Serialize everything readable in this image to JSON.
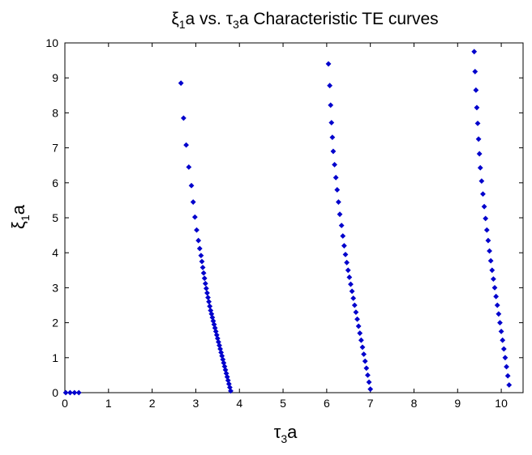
{
  "chart_data": {
    "type": "scatter",
    "title": {
      "greek": "ξ",
      "sub1": "1",
      "mid": "a vs. ",
      "greek2": "τ",
      "sub2": "3",
      "rest": "a Characteristic TE curves"
    },
    "xlabel": {
      "greek": "τ",
      "sub": "3",
      "rest": "a"
    },
    "ylabel": {
      "greek": "ξ",
      "sub": "1",
      "rest": "a"
    },
    "xlim": [
      0,
      10.5
    ],
    "ylim": [
      0,
      10
    ],
    "xticks": [
      0,
      1,
      2,
      3,
      4,
      5,
      6,
      7,
      8,
      9,
      10
    ],
    "yticks": [
      0,
      1,
      2,
      3,
      4,
      5,
      6,
      7,
      8,
      9,
      10
    ],
    "grid": false,
    "marker_color": "#0000cc",
    "series": [
      {
        "points": [
          [
            0.02,
            0.0
          ],
          [
            0.12,
            0.0
          ],
          [
            0.22,
            0.0
          ],
          [
            0.32,
            0.0
          ]
        ]
      },
      {
        "points": [
          [
            3.8,
            0.05
          ],
          [
            3.78,
            0.15
          ],
          [
            3.76,
            0.25
          ],
          [
            3.74,
            0.35
          ],
          [
            3.72,
            0.45
          ],
          [
            3.7,
            0.55
          ],
          [
            3.68,
            0.65
          ],
          [
            3.66,
            0.75
          ],
          [
            3.64,
            0.85
          ],
          [
            3.62,
            0.95
          ],
          [
            3.6,
            1.05
          ],
          [
            3.58,
            1.15
          ],
          [
            3.56,
            1.25
          ],
          [
            3.54,
            1.35
          ],
          [
            3.52,
            1.45
          ],
          [
            3.5,
            1.55
          ],
          [
            3.48,
            1.65
          ],
          [
            3.46,
            1.75
          ],
          [
            3.44,
            1.85
          ],
          [
            3.42,
            1.95
          ],
          [
            3.4,
            2.05
          ],
          [
            3.38,
            2.15
          ],
          [
            3.36,
            2.25
          ],
          [
            3.34,
            2.35
          ],
          [
            3.32,
            2.47
          ],
          [
            3.3,
            2.6
          ],
          [
            3.28,
            2.72
          ],
          [
            3.26,
            2.85
          ],
          [
            3.24,
            2.98
          ],
          [
            3.22,
            3.12
          ],
          [
            3.2,
            3.27
          ],
          [
            3.18,
            3.42
          ],
          [
            3.16,
            3.58
          ],
          [
            3.14,
            3.75
          ],
          [
            3.12,
            3.92
          ],
          [
            3.09,
            4.12
          ],
          [
            3.06,
            4.35
          ],
          [
            3.02,
            4.65
          ],
          [
            2.98,
            5.02
          ],
          [
            2.94,
            5.45
          ],
          [
            2.9,
            5.92
          ],
          [
            2.84,
            6.45
          ],
          [
            2.78,
            7.08
          ],
          [
            2.72,
            7.85
          ],
          [
            2.66,
            8.85
          ]
        ]
      },
      {
        "points": [
          [
            7.0,
            0.1
          ],
          [
            6.97,
            0.3
          ],
          [
            6.94,
            0.5
          ],
          [
            6.91,
            0.7
          ],
          [
            6.88,
            0.9
          ],
          [
            6.85,
            1.1
          ],
          [
            6.82,
            1.3
          ],
          [
            6.79,
            1.5
          ],
          [
            6.76,
            1.7
          ],
          [
            6.73,
            1.9
          ],
          [
            6.7,
            2.1
          ],
          [
            6.67,
            2.3
          ],
          [
            6.64,
            2.5
          ],
          [
            6.61,
            2.7
          ],
          [
            6.58,
            2.9
          ],
          [
            6.55,
            3.1
          ],
          [
            6.52,
            3.3
          ],
          [
            6.49,
            3.5
          ],
          [
            6.46,
            3.72
          ],
          [
            6.43,
            3.95
          ],
          [
            6.4,
            4.2
          ],
          [
            6.37,
            4.48
          ],
          [
            6.34,
            4.78
          ],
          [
            6.3,
            5.1
          ],
          [
            6.27,
            5.45
          ],
          [
            6.24,
            5.8
          ],
          [
            6.21,
            6.15
          ],
          [
            6.18,
            6.52
          ],
          [
            6.15,
            6.9
          ],
          [
            6.13,
            7.3
          ],
          [
            6.11,
            7.72
          ],
          [
            6.09,
            8.22
          ],
          [
            6.07,
            8.78
          ],
          [
            6.04,
            9.4
          ]
        ]
      },
      {
        "points": [
          [
            10.18,
            0.22
          ],
          [
            10.15,
            0.48
          ],
          [
            10.12,
            0.74
          ],
          [
            10.09,
            1.0
          ],
          [
            10.06,
            1.25
          ],
          [
            10.03,
            1.5
          ],
          [
            10.0,
            1.75
          ],
          [
            9.97,
            2.0
          ],
          [
            9.94,
            2.25
          ],
          [
            9.91,
            2.5
          ],
          [
            9.88,
            2.75
          ],
          [
            9.85,
            3.0
          ],
          [
            9.82,
            3.25
          ],
          [
            9.79,
            3.5
          ],
          [
            9.76,
            3.77
          ],
          [
            9.73,
            4.05
          ],
          [
            9.7,
            4.35
          ],
          [
            9.67,
            4.65
          ],
          [
            9.64,
            4.98
          ],
          [
            9.61,
            5.32
          ],
          [
            9.58,
            5.68
          ],
          [
            9.55,
            6.05
          ],
          [
            9.52,
            6.43
          ],
          [
            9.5,
            6.83
          ],
          [
            9.48,
            7.25
          ],
          [
            9.46,
            7.7
          ],
          [
            9.44,
            8.15
          ],
          [
            9.42,
            8.65
          ],
          [
            9.4,
            9.18
          ],
          [
            9.38,
            9.75
          ]
        ]
      }
    ]
  }
}
